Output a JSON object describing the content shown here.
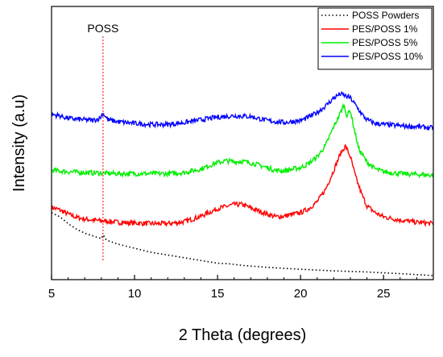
{
  "chart_data": {
    "type": "line",
    "xlabel": "2 Theta (degrees)",
    "ylabel": "Intensity (a.u)",
    "xlim": [
      5,
      28
    ],
    "x_ticks": [
      5,
      10,
      15,
      20,
      25
    ],
    "y_ticks": [],
    "ylim": [
      0,
      1
    ],
    "legend_position": "top-right",
    "annotation": {
      "text": "POSS",
      "x": 8.1
    },
    "series": [
      {
        "name": "POSS Powders",
        "color": "#000000",
        "dash": "dotted",
        "points": [
          [
            5.0,
            0.245
          ],
          [
            5.5,
            0.23
          ],
          [
            6.0,
            0.205
          ],
          [
            6.5,
            0.185
          ],
          [
            7.0,
            0.17
          ],
          [
            7.5,
            0.16
          ],
          [
            8.0,
            0.15
          ],
          [
            8.1,
            0.165
          ],
          [
            8.3,
            0.145
          ],
          [
            9.0,
            0.13
          ],
          [
            10.0,
            0.115
          ],
          [
            11.0,
            0.1
          ],
          [
            12.0,
            0.09
          ],
          [
            13.0,
            0.08
          ],
          [
            14.0,
            0.07
          ],
          [
            15.0,
            0.06
          ],
          [
            15.7,
            0.058
          ],
          [
            16.5,
            0.052
          ],
          [
            18.0,
            0.045
          ],
          [
            20.0,
            0.038
          ],
          [
            22.0,
            0.032
          ],
          [
            24.0,
            0.028
          ],
          [
            26.0,
            0.022
          ],
          [
            28.0,
            0.015
          ]
        ]
      },
      {
        "name": "PES/POSS 1%",
        "color": "#ff0000",
        "dash": "solid",
        "points": [
          [
            5.0,
            0.265
          ],
          [
            5.5,
            0.255
          ],
          [
            6.0,
            0.24
          ],
          [
            6.5,
            0.228
          ],
          [
            7.0,
            0.222
          ],
          [
            7.5,
            0.218
          ],
          [
            8.0,
            0.215
          ],
          [
            8.5,
            0.213
          ],
          [
            9.0,
            0.21
          ],
          [
            10.0,
            0.207
          ],
          [
            11.0,
            0.205
          ],
          [
            12.0,
            0.205
          ],
          [
            13.0,
            0.212
          ],
          [
            14.0,
            0.232
          ],
          [
            15.0,
            0.26
          ],
          [
            16.0,
            0.275
          ],
          [
            16.5,
            0.275
          ],
          [
            17.0,
            0.262
          ],
          [
            18.0,
            0.24
          ],
          [
            18.5,
            0.23
          ],
          [
            19.0,
            0.232
          ],
          [
            20.0,
            0.245
          ],
          [
            20.5,
            0.26
          ],
          [
            21.0,
            0.285
          ],
          [
            21.5,
            0.33
          ],
          [
            22.0,
            0.4
          ],
          [
            22.4,
            0.46
          ],
          [
            22.7,
            0.49
          ],
          [
            23.0,
            0.45
          ],
          [
            23.3,
            0.38
          ],
          [
            23.7,
            0.31
          ],
          [
            24.0,
            0.27
          ],
          [
            24.5,
            0.245
          ],
          [
            25.0,
            0.23
          ],
          [
            26.0,
            0.218
          ],
          [
            27.0,
            0.21
          ],
          [
            28.0,
            0.205
          ]
        ]
      },
      {
        "name": "PES/POSS 5%",
        "color": "#00ee00",
        "dash": "solid",
        "points": [
          [
            5.0,
            0.4
          ],
          [
            6.0,
            0.395
          ],
          [
            7.0,
            0.392
          ],
          [
            8.0,
            0.39
          ],
          [
            9.0,
            0.388
          ],
          [
            10.0,
            0.388
          ],
          [
            11.0,
            0.388
          ],
          [
            12.0,
            0.388
          ],
          [
            13.0,
            0.392
          ],
          [
            14.0,
            0.405
          ],
          [
            14.8,
            0.425
          ],
          [
            15.5,
            0.435
          ],
          [
            16.0,
            0.432
          ],
          [
            16.5,
            0.433
          ],
          [
            17.0,
            0.428
          ],
          [
            18.0,
            0.41
          ],
          [
            18.5,
            0.4
          ],
          [
            19.0,
            0.398
          ],
          [
            20.0,
            0.41
          ],
          [
            20.5,
            0.425
          ],
          [
            21.0,
            0.45
          ],
          [
            21.5,
            0.49
          ],
          [
            22.0,
            0.56
          ],
          [
            22.4,
            0.61
          ],
          [
            22.6,
            0.64
          ],
          [
            22.8,
            0.6
          ],
          [
            23.0,
            0.62
          ],
          [
            23.2,
            0.56
          ],
          [
            23.5,
            0.48
          ],
          [
            24.0,
            0.43
          ],
          [
            24.5,
            0.405
          ],
          [
            25.0,
            0.395
          ],
          [
            26.0,
            0.388
          ],
          [
            27.0,
            0.385
          ],
          [
            28.0,
            0.382
          ]
        ]
      },
      {
        "name": "PES/POSS 10%",
        "color": "#0000ff",
        "dash": "solid",
        "points": [
          [
            5.0,
            0.605
          ],
          [
            5.5,
            0.6
          ],
          [
            6.0,
            0.59
          ],
          [
            7.0,
            0.585
          ],
          [
            7.5,
            0.583
          ],
          [
            7.9,
            0.59
          ],
          [
            8.1,
            0.61
          ],
          [
            8.4,
            0.585
          ],
          [
            9.0,
            0.578
          ],
          [
            10.0,
            0.572
          ],
          [
            11.0,
            0.568
          ],
          [
            12.0,
            0.568
          ],
          [
            13.0,
            0.575
          ],
          [
            14.0,
            0.585
          ],
          [
            15.0,
            0.595
          ],
          [
            16.0,
            0.6
          ],
          [
            17.0,
            0.597
          ],
          [
            18.0,
            0.582
          ],
          [
            19.0,
            0.575
          ],
          [
            20.0,
            0.582
          ],
          [
            20.5,
            0.595
          ],
          [
            21.0,
            0.612
          ],
          [
            21.5,
            0.635
          ],
          [
            22.0,
            0.665
          ],
          [
            22.4,
            0.68
          ],
          [
            22.6,
            0.675
          ],
          [
            23.0,
            0.665
          ],
          [
            23.3,
            0.64
          ],
          [
            23.7,
            0.605
          ],
          [
            24.0,
            0.585
          ],
          [
            24.5,
            0.572
          ],
          [
            25.0,
            0.568
          ],
          [
            26.0,
            0.563
          ],
          [
            27.0,
            0.56
          ],
          [
            28.0,
            0.555
          ]
        ]
      }
    ]
  }
}
